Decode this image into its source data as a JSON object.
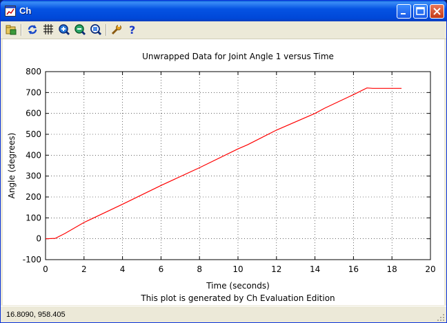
{
  "window": {
    "title": "Ch",
    "buttons": [
      "minimize",
      "maximize",
      "close"
    ]
  },
  "toolbar": {
    "tools": [
      {
        "name": "open-icon"
      },
      {
        "name": "refresh-icon"
      },
      {
        "name": "grid-icon"
      },
      {
        "name": "zoom-in-icon"
      },
      {
        "name": "zoom-out-icon"
      },
      {
        "name": "zoom-reset-icon"
      },
      {
        "name": "options-wrench-icon"
      },
      {
        "name": "help-icon"
      }
    ]
  },
  "chart_data": {
    "type": "line",
    "title": "Unwrapped Data for Joint Angle 1 versus Time",
    "xlabel": "Time (seconds)",
    "ylabel": "Angle (degrees)",
    "footer": "This plot is generated by Ch Evaluation Edition",
    "xlim": [
      0,
      20
    ],
    "ylim": [
      -100,
      800
    ],
    "xticks": [
      0,
      2,
      4,
      6,
      8,
      10,
      12,
      14,
      16,
      18,
      20
    ],
    "yticks": [
      -100,
      0,
      100,
      200,
      300,
      400,
      500,
      600,
      700,
      800
    ],
    "grid": true,
    "line_color": "#ff0000",
    "series": [
      {
        "x": [
          0,
          0.5,
          1,
          2,
          4,
          6,
          8,
          10,
          10.5,
          12,
          14,
          14.5,
          16,
          16.7,
          17,
          18.5
        ],
        "y": [
          0,
          2,
          25,
          78,
          165,
          255,
          340,
          430,
          450,
          520,
          600,
          625,
          690,
          722,
          720,
          720
        ]
      }
    ]
  },
  "status": {
    "coords": "16.8090,  958.405"
  }
}
